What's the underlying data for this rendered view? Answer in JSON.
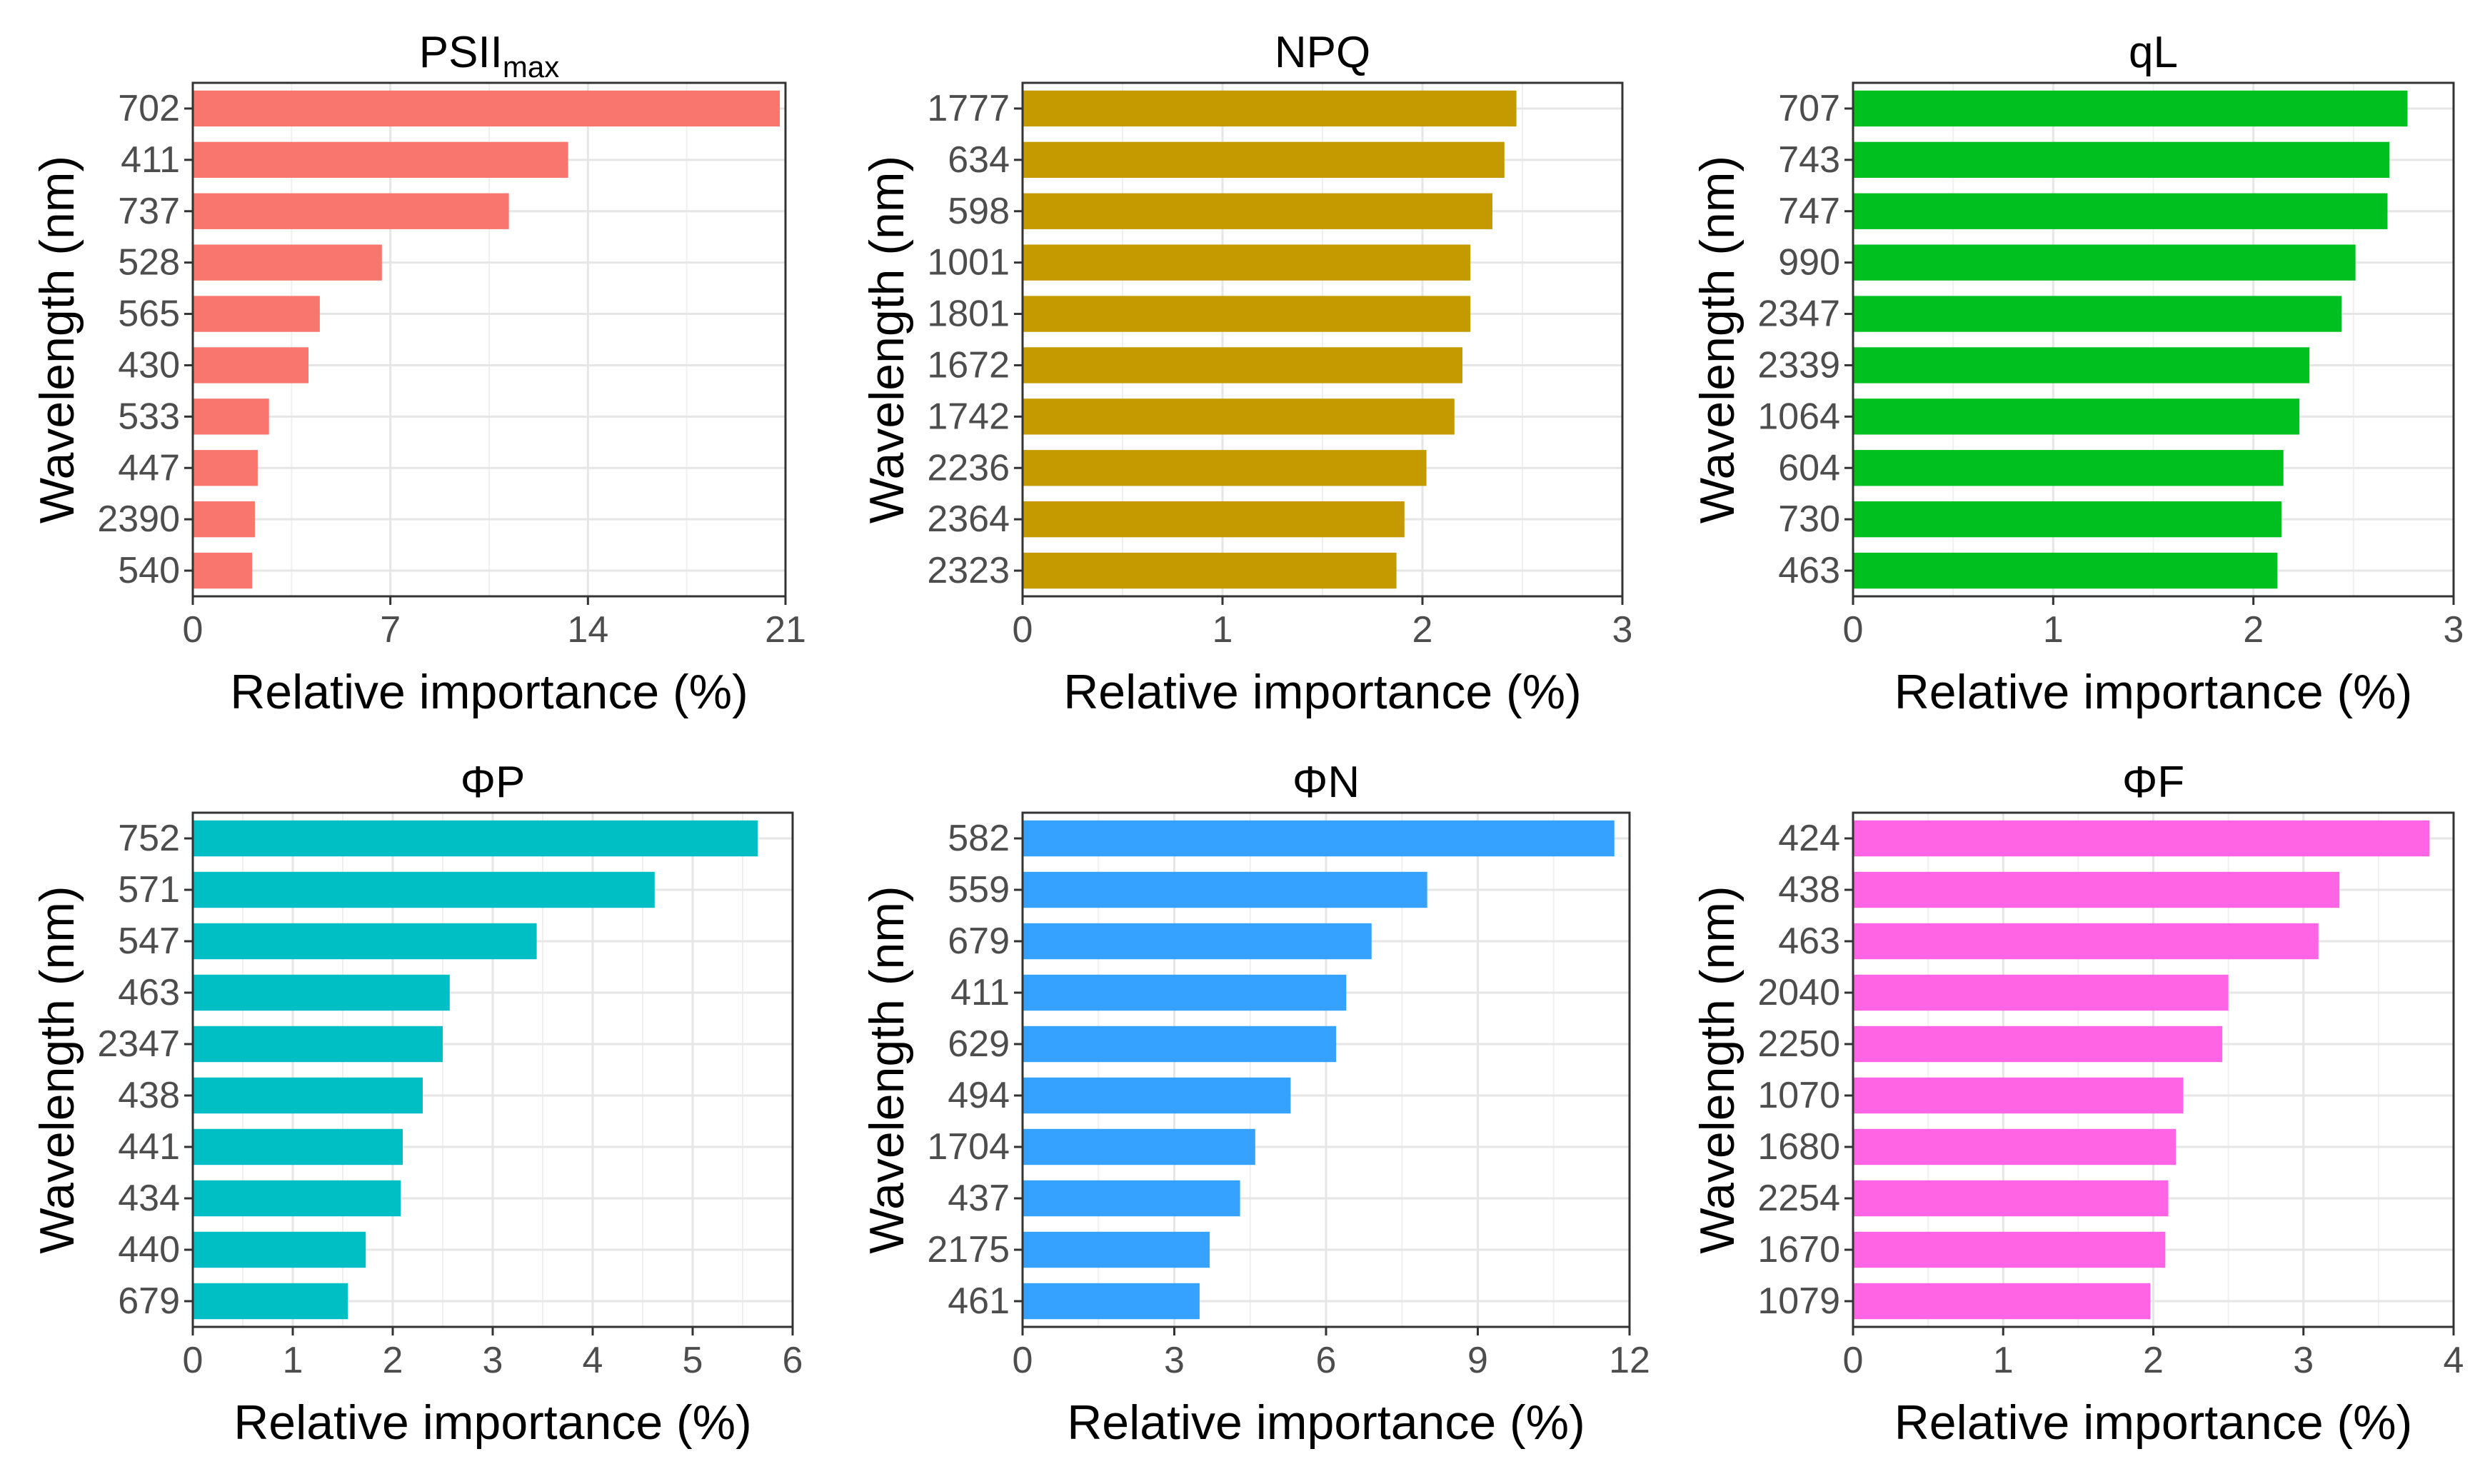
{
  "chart_data": [
    {
      "type": "bar",
      "orientation": "horizontal",
      "title": "PSII",
      "title_subscript": "max",
      "xlabel": "Relative importance (%)",
      "ylabel": "Wavelength (nm)",
      "xlim": [
        0,
        21
      ],
      "xticks": [
        0,
        7,
        14,
        21
      ],
      "color": "#F8766D",
      "categories": [
        "702",
        "411",
        "737",
        "528",
        "565",
        "430",
        "533",
        "447",
        "2390",
        "540"
      ],
      "values": [
        20.8,
        13.3,
        11.2,
        6.7,
        4.5,
        4.1,
        2.7,
        2.3,
        2.2,
        2.1
      ]
    },
    {
      "type": "bar",
      "orientation": "horizontal",
      "title": "NPQ",
      "title_subscript": "",
      "xlabel": "Relative importance (%)",
      "ylabel": "Wavelength (nm)",
      "xlim": [
        0,
        3
      ],
      "xticks": [
        0,
        1,
        2,
        3
      ],
      "color": "#C49A00",
      "categories": [
        "1777",
        "634",
        "598",
        "1001",
        "1801",
        "1672",
        "1742",
        "2236",
        "2364",
        "2323"
      ],
      "values": [
        2.47,
        2.41,
        2.35,
        2.24,
        2.24,
        2.2,
        2.16,
        2.02,
        1.91,
        1.87
      ]
    },
    {
      "type": "bar",
      "orientation": "horizontal",
      "title": "qL",
      "title_subscript": "",
      "xlabel": "Relative importance (%)",
      "ylabel": "Wavelength (nm)",
      "xlim": [
        0,
        3
      ],
      "xticks": [
        0,
        1,
        2,
        3
      ],
      "color": "#00C01F",
      "categories": [
        "707",
        "743",
        "747",
        "990",
        "2347",
        "2339",
        "1064",
        "604",
        "730",
        "463"
      ],
      "values": [
        2.77,
        2.68,
        2.67,
        2.51,
        2.44,
        2.28,
        2.23,
        2.15,
        2.14,
        2.12
      ]
    },
    {
      "type": "bar",
      "orientation": "horizontal",
      "title": "ΦP",
      "title_subscript": "",
      "xlabel": "Relative importance (%)",
      "ylabel": "Wavelength (nm)",
      "xlim": [
        0,
        6
      ],
      "xticks": [
        0,
        1,
        2,
        3,
        4,
        5,
        6
      ],
      "color": "#00BFC4",
      "categories": [
        "752",
        "571",
        "547",
        "463",
        "2347",
        "438",
        "441",
        "434",
        "440",
        "679"
      ],
      "values": [
        5.65,
        4.62,
        3.44,
        2.57,
        2.5,
        2.3,
        2.1,
        2.08,
        1.73,
        1.55
      ]
    },
    {
      "type": "bar",
      "orientation": "horizontal",
      "title": "ΦN",
      "title_subscript": "",
      "xlabel": "Relative importance (%)",
      "ylabel": "Wavelength (nm)",
      "xlim": [
        0,
        12
      ],
      "xticks": [
        0,
        3,
        6,
        9,
        12
      ],
      "color": "#35A2FF",
      "categories": [
        "582",
        "559",
        "679",
        "411",
        "629",
        "494",
        "1704",
        "437",
        "2175",
        "461"
      ],
      "values": [
        11.7,
        8.0,
        6.9,
        6.4,
        6.2,
        5.3,
        4.6,
        4.3,
        3.7,
        3.5
      ]
    },
    {
      "type": "bar",
      "orientation": "horizontal",
      "title": "ΦF",
      "title_subscript": "",
      "xlabel": "Relative importance (%)",
      "ylabel": "Wavelength (nm)",
      "xlim": [
        0,
        4
      ],
      "xticks": [
        0,
        1,
        2,
        3,
        4
      ],
      "color": "#FF64E5",
      "categories": [
        "424",
        "438",
        "463",
        "2040",
        "2250",
        "1070",
        "1680",
        "2254",
        "1670",
        "1079"
      ],
      "values": [
        3.84,
        3.24,
        3.1,
        2.5,
        2.46,
        2.2,
        2.15,
        2.1,
        2.08,
        1.98
      ]
    }
  ]
}
